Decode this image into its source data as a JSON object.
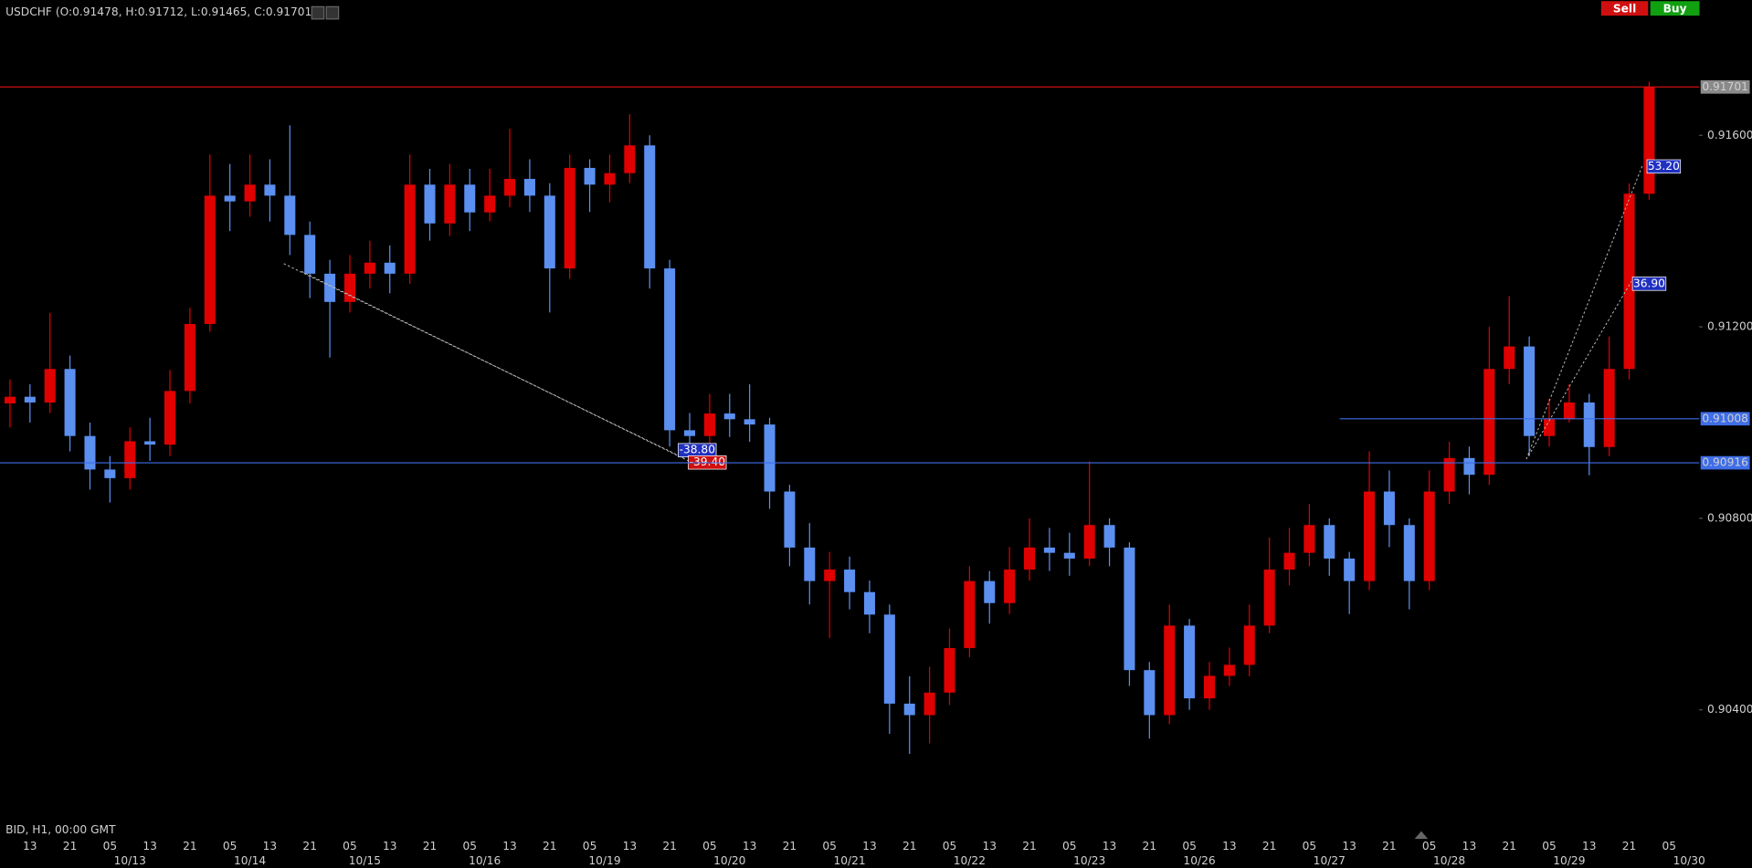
{
  "chart_data": {
    "type": "candlestick",
    "title": "USDCHF (O:0.91478, H:0.91712, L:0.91465, C:0.91701)",
    "buttons": [
      "Sell",
      "Buy"
    ],
    "info_label": "BID, H1, 00:00 GMT",
    "up_color": "#e00000",
    "down_color": "#5b8ff0",
    "x": [
      2,
      6,
      10,
      14,
      18,
      22,
      26,
      30,
      34,
      38,
      42,
      46,
      50,
      54,
      58,
      62,
      66,
      70,
      74,
      78,
      82,
      86,
      90,
      94,
      98,
      102,
      106,
      110,
      114,
      118,
      122,
      126,
      130,
      134,
      138,
      142,
      146,
      150,
      154,
      158,
      162,
      166,
      170,
      174,
      178,
      182,
      186,
      190,
      194,
      198,
      202,
      206,
      210,
      214,
      218,
      222,
      226,
      230,
      234,
      238,
      242,
      246,
      250,
      254,
      258,
      262,
      266,
      270,
      274,
      278,
      282,
      286,
      290,
      294,
      298,
      302,
      306,
      310,
      314,
      318,
      322,
      326,
      330
    ],
    "open": [
      0.9104,
      0.91054,
      0.91042,
      0.91112,
      0.90972,
      0.90902,
      0.90884,
      0.90961,
      0.90954,
      0.91066,
      0.91206,
      0.91474,
      0.91462,
      0.91497,
      0.91474,
      0.91392,
      0.91311,
      0.91252,
      0.91311,
      0.91334,
      0.91311,
      0.91497,
      0.91416,
      0.91497,
      0.91439,
      0.91474,
      0.91509,
      0.91474,
      0.91322,
      0.91532,
      0.91497,
      0.91521,
      0.91579,
      0.91322,
      0.90984,
      0.90972,
      0.91019,
      0.91007,
      0.90996,
      0.90856,
      0.90739,
      0.90669,
      0.90693,
      0.90646,
      0.90599,
      0.90413,
      0.90389,
      0.90436,
      0.90529,
      0.90669,
      0.90623,
      0.90693,
      0.90739,
      0.90728,
      0.90716,
      0.90786,
      0.90739,
      0.90483,
      0.90389,
      0.90576,
      0.90424,
      0.90471,
      0.90494,
      0.90576,
      0.90693,
      0.90728,
      0.90786,
      0.90716,
      0.90669,
      0.90856,
      0.90786,
      0.90669,
      0.90856,
      0.90926,
      0.90891,
      0.91112,
      0.91159,
      0.90972,
      0.91007,
      0.91042,
      0.90949,
      0.91112,
      0.91478
    ],
    "high": [
      0.9109,
      0.9108,
      0.91229,
      0.9114,
      0.91,
      0.9093,
      0.9099,
      0.9101,
      0.9111,
      0.9124,
      0.9156,
      0.9154,
      0.9156,
      0.9155,
      0.91621,
      0.9142,
      0.9134,
      0.9135,
      0.9138,
      0.9137,
      0.9156,
      0.9153,
      0.9154,
      0.9153,
      0.9153,
      0.91614,
      0.9155,
      0.915,
      0.9156,
      0.9155,
      0.9156,
      0.91644,
      0.916,
      0.9134,
      0.9102,
      0.9106,
      0.9106,
      0.9108,
      0.9101,
      0.9087,
      0.9079,
      0.9073,
      0.9072,
      0.9067,
      0.9062,
      0.9047,
      0.9049,
      0.9057,
      0.907,
      0.9069,
      0.9074,
      0.908,
      0.9078,
      0.9077,
      0.90919,
      0.908,
      0.9075,
      0.905,
      0.9062,
      0.9059,
      0.905,
      0.9053,
      0.9062,
      0.9076,
      0.9078,
      0.9083,
      0.908,
      0.9073,
      0.9094,
      0.909,
      0.908,
      0.909,
      0.9096,
      0.9095,
      0.912,
      0.91264,
      0.9118,
      0.9105,
      0.9108,
      0.9106,
      0.9118,
      0.915,
      0.91712
    ],
    "low": [
      0.9099,
      0.91,
      0.9102,
      0.9094,
      0.9086,
      0.90833,
      0.9086,
      0.9092,
      0.9093,
      0.9104,
      0.9119,
      0.914,
      0.9143,
      0.9142,
      0.9135,
      0.9126,
      0.91136,
      0.9123,
      0.9128,
      0.9127,
      0.9129,
      0.9138,
      0.9139,
      0.914,
      0.9142,
      0.9145,
      0.9144,
      0.9123,
      0.913,
      0.9144,
      0.9146,
      0.915,
      0.9128,
      0.9095,
      0.9093,
      0.9095,
      0.9097,
      0.9096,
      0.9082,
      0.907,
      0.9062,
      0.9055,
      0.9061,
      0.9056,
      0.9035,
      0.90308,
      0.9033,
      0.9041,
      0.9051,
      0.9058,
      0.906,
      0.9067,
      0.9069,
      0.9068,
      0.907,
      0.907,
      0.9045,
      0.9034,
      0.9037,
      0.904,
      0.904,
      0.9045,
      0.9047,
      0.9056,
      0.9066,
      0.907,
      0.9068,
      0.906,
      0.9065,
      0.9074,
      0.9061,
      0.9065,
      0.9083,
      0.9085,
      0.9087,
      0.9108,
      0.9093,
      0.9095,
      0.91,
      0.9089,
      0.9093,
      0.9109,
      0.91465
    ],
    "close": [
      0.91054,
      0.91042,
      0.91112,
      0.90972,
      0.90902,
      0.90884,
      0.90961,
      0.90954,
      0.91066,
      0.91206,
      0.91474,
      0.91462,
      0.91497,
      0.91474,
      0.91392,
      0.91311,
      0.91252,
      0.91311,
      0.91334,
      0.91311,
      0.91497,
      0.91416,
      0.91497,
      0.91439,
      0.91474,
      0.91509,
      0.91474,
      0.91322,
      0.91532,
      0.91497,
      0.91521,
      0.91579,
      0.91322,
      0.90984,
      0.90972,
      0.91019,
      0.91007,
      0.90996,
      0.90856,
      0.90739,
      0.90669,
      0.90693,
      0.90646,
      0.90599,
      0.90413,
      0.90389,
      0.90436,
      0.90529,
      0.90669,
      0.90623,
      0.90693,
      0.90739,
      0.90728,
      0.90716,
      0.90786,
      0.90739,
      0.90483,
      0.90389,
      0.90576,
      0.90424,
      0.90471,
      0.90494,
      0.90576,
      0.90693,
      0.90728,
      0.90786,
      0.90716,
      0.90669,
      0.90856,
      0.90786,
      0.90669,
      0.90856,
      0.90926,
      0.90891,
      0.91112,
      0.91159,
      0.90972,
      0.91007,
      0.91042,
      0.90949,
      0.91112,
      0.91478,
      0.91701
    ],
    "xlim": [
      0,
      340
    ],
    "ylim": [
      0.90156,
      0.91836
    ],
    "yticks": [
      {
        "value": 0.904,
        "label": "0.90400"
      },
      {
        "value": 0.908,
        "label": "0.90800"
      },
      {
        "value": 0.912,
        "label": "0.91200"
      },
      {
        "value": 0.916,
        "label": "0.91600"
      }
    ],
    "xticks": [
      {
        "value": 6,
        "label": "13"
      },
      {
        "value": 14,
        "label": "21"
      },
      {
        "value": 22,
        "label": "05"
      },
      {
        "value": 30,
        "label": "13"
      },
      {
        "value": 38,
        "label": "21"
      },
      {
        "value": 46,
        "label": "05"
      },
      {
        "value": 54,
        "label": "13"
      },
      {
        "value": 62,
        "label": "21"
      },
      {
        "value": 70,
        "label": "05"
      },
      {
        "value": 78,
        "label": "13"
      },
      {
        "value": 86,
        "label": "21"
      },
      {
        "value": 94,
        "label": "05"
      },
      {
        "value": 102,
        "label": "13"
      },
      {
        "value": 110,
        "label": "21"
      },
      {
        "value": 118,
        "label": "05"
      },
      {
        "value": 126,
        "label": "13"
      },
      {
        "value": 134,
        "label": "21"
      },
      {
        "value": 142,
        "label": "05"
      },
      {
        "value": 150,
        "label": "13"
      },
      {
        "value": 158,
        "label": "21"
      },
      {
        "value": 166,
        "label": "05"
      },
      {
        "value": 174,
        "label": "13"
      },
      {
        "value": 182,
        "label": "21"
      },
      {
        "value": 190,
        "label": "05"
      },
      {
        "value": 198,
        "label": "13"
      },
      {
        "value": 206,
        "label": "21"
      },
      {
        "value": 214,
        "label": "05"
      },
      {
        "value": 222,
        "label": "13"
      },
      {
        "value": 230,
        "label": "21"
      },
      {
        "value": 238,
        "label": "05"
      },
      {
        "value": 246,
        "label": "13"
      },
      {
        "value": 254,
        "label": "21"
      },
      {
        "value": 262,
        "label": "05"
      },
      {
        "value": 270,
        "label": "13"
      },
      {
        "value": 278,
        "label": "21"
      },
      {
        "value": 286,
        "label": "05"
      },
      {
        "value": 294,
        "label": "13"
      },
      {
        "value": 302,
        "label": "21"
      },
      {
        "value": 310,
        "label": "05"
      },
      {
        "value": 318,
        "label": "13"
      },
      {
        "value": 326,
        "label": "21"
      },
      {
        "value": 334,
        "label": "05"
      }
    ],
    "date_ticks": [
      {
        "value": 26,
        "label": "10/13"
      },
      {
        "value": 50,
        "label": "10/14"
      },
      {
        "value": 73,
        "label": "10/15"
      },
      {
        "value": 97,
        "label": "10/16"
      },
      {
        "value": 121,
        "label": "10/19"
      },
      {
        "value": 146,
        "label": "10/20"
      },
      {
        "value": 170,
        "label": "10/21"
      },
      {
        "value": 194,
        "label": "10/22"
      },
      {
        "value": 218,
        "label": "10/23"
      },
      {
        "value": 240,
        "label": "10/26"
      },
      {
        "value": 266,
        "label": "10/27"
      },
      {
        "value": 290,
        "label": "10/28"
      },
      {
        "value": 314,
        "label": "10/29"
      },
      {
        "value": 338,
        "label": "10/30"
      }
    ],
    "price_lines": [
      {
        "value": 0.91701,
        "color": "#d01010",
        "label_color": "#8a8a8a"
      },
      {
        "value": 0.91008,
        "color": "#3f6ee8",
        "label_color": "#3f6ee8"
      },
      {
        "value": 0.90916,
        "color": "#3f6ee8",
        "label_color": "#3f6ee8"
      }
    ],
    "annotations": [
      "-38.80",
      "-39.40",
      "53.20",
      "36.90"
    ]
  }
}
